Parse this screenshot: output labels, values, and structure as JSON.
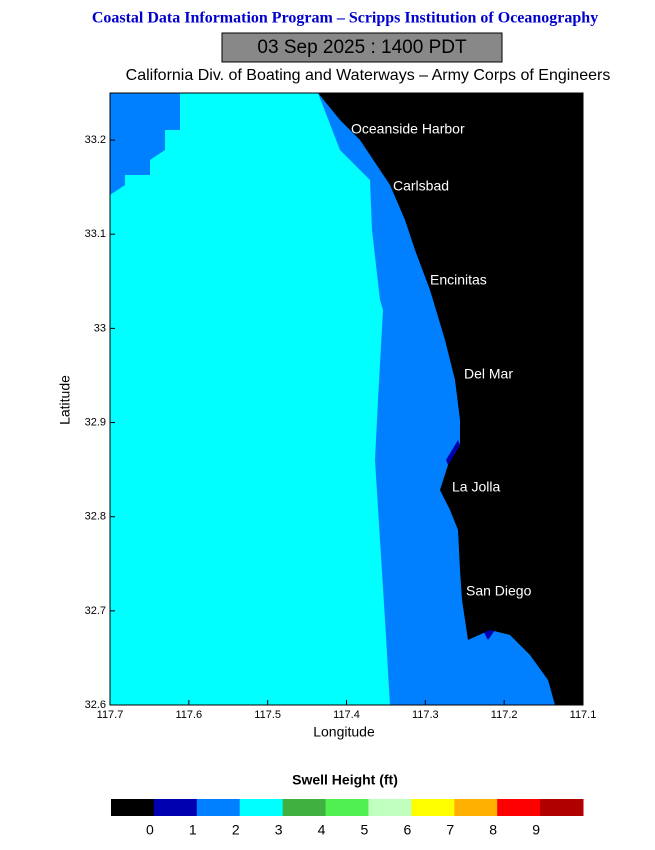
{
  "header": {
    "title": "Coastal Data Information Program – Scripps Institution of Oceanography",
    "timestamp": "03 Sep 2025 : 1400 PDT",
    "subtitle": "California Div. of Boating and Waterways – Army Corps of Engineers"
  },
  "map": {
    "xlabel": "Longitude",
    "ylabel": "Latitude",
    "xlim": [
      117.7,
      117.1
    ],
    "xticks": [
      117.7,
      117.6,
      117.5,
      117.4,
      117.3,
      117.2,
      117.1
    ],
    "ylim": [
      32.6,
      33.25
    ],
    "yticks": [
      32.6,
      32.7,
      32.8,
      32.9,
      33,
      33.1,
      33.2
    ],
    "places": [
      "Oceanside Harbor",
      "Carlsbad",
      "Encinitas",
      "Del Mar",
      "La Jolla",
      "San Diego"
    ]
  },
  "colorbar": {
    "title": "Swell Height (ft)",
    "colors": [
      "#000000",
      "#0000b0",
      "#0080ff",
      "#00ffff",
      "#40b040",
      "#50f050",
      "#c0ffc0",
      "#ffff00",
      "#ffb000",
      "#ff0000",
      "#b00000"
    ],
    "ticks": [
      0,
      1,
      2,
      3,
      4,
      5,
      6,
      7,
      8,
      9
    ]
  }
}
